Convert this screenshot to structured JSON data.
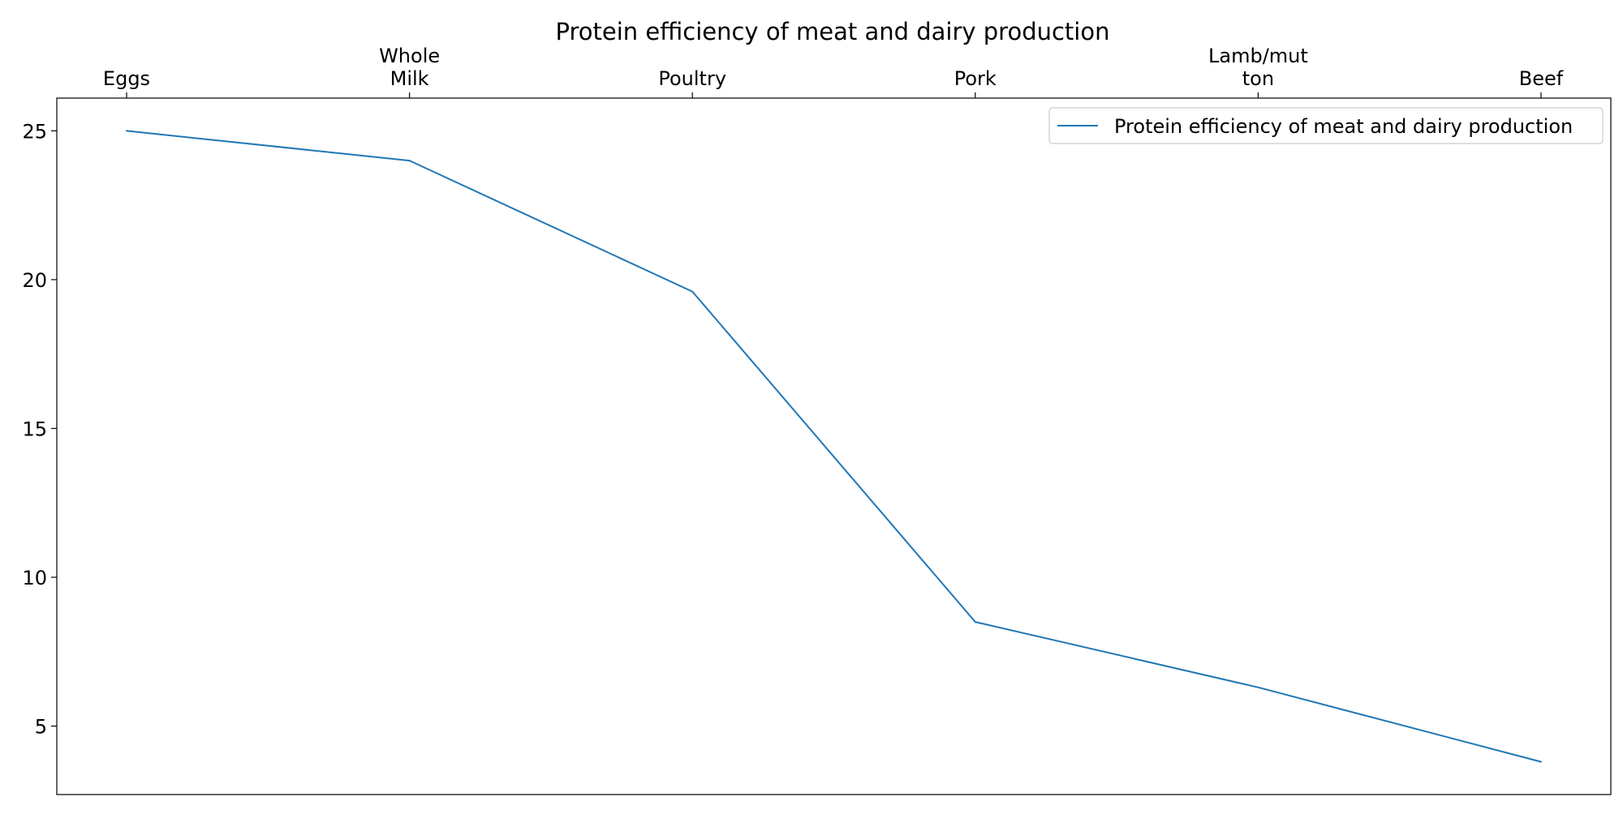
{
  "chart_data": {
    "type": "line",
    "title": "Protein efficiency of meat and dairy production",
    "categories": [
      "Eggs",
      "Whole Milk",
      "Poultry",
      "Pork",
      "Lamb/mutton",
      "Beef"
    ],
    "category_lines": [
      [
        "Eggs"
      ],
      [
        "Whole",
        "Milk"
      ],
      [
        "Poultry"
      ],
      [
        "Pork"
      ],
      [
        "Lamb/mut",
        "ton"
      ],
      [
        "Beef"
      ]
    ],
    "series": [
      {
        "name": "Protein efficiency of meat and dairy production",
        "values": [
          25,
          24,
          19.6,
          8.5,
          6.3,
          3.8
        ],
        "color": "#1f77b4"
      }
    ],
    "xlabel": "",
    "ylabel": "",
    "ylim": [
      2.7,
      26.1
    ],
    "yticks": [
      5,
      10,
      15,
      20,
      25
    ],
    "xaxis_position": "top",
    "legend_position": "upper right",
    "grid": false
  }
}
